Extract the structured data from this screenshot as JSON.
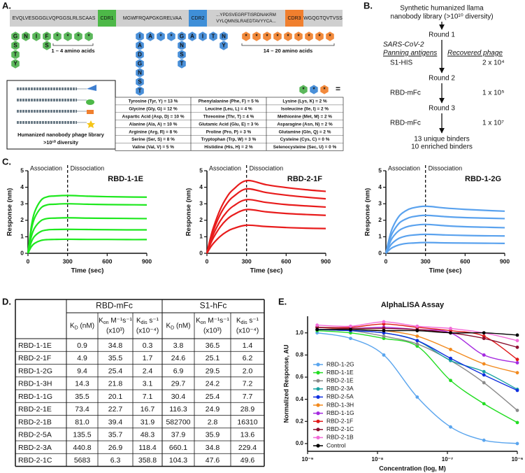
{
  "panel_a": {
    "label": "A.",
    "sequence": [
      {
        "lines": [
          "EVQLVESGGGLVQPGGSLRLSCAAS"
        ],
        "color": "#cfcfcf"
      },
      {
        "lines": [
          "CDR1"
        ],
        "color": "#4db848"
      },
      {
        "lines": [
          "MGWFRQAPGKGRELVAA"
        ],
        "color": "#cfcfcf"
      },
      {
        "lines": [
          "CDR2"
        ],
        "color": "#3f8fd8"
      },
      {
        "lines": [
          "...YPDSVEGRFTISRDNAKRM",
          "VYLQMNSLRAEDTAVYYCA..."
        ],
        "color": "#cfcfcf"
      },
      {
        "lines": [
          "CDR3"
        ],
        "color": "#f07f2e"
      },
      {
        "lines": [
          "WGQGTQVTVSS"
        ],
        "color": "#cfcfcf"
      }
    ],
    "chains": [
      {
        "color": "#5cb85c",
        "label": "1 – 4 amino acids",
        "columns": [
          [
            "G",
            "S",
            "T",
            "Y"
          ],
          [
            "N"
          ],
          [
            "I"
          ],
          [
            "F",
            "S"
          ],
          [
            "*"
          ],
          [
            "*"
          ],
          [
            "*"
          ],
          [
            "*"
          ]
        ]
      },
      {
        "color": "#4a90d9",
        "columns": [
          [
            "I",
            "A",
            "D",
            "G",
            "N",
            "S",
            "T"
          ],
          [
            "A"
          ],
          [
            "*"
          ],
          [
            "*"
          ],
          [
            "G",
            "N",
            "S",
            "T"
          ],
          [
            "A"
          ],
          [
            "I"
          ],
          [
            "T"
          ],
          [
            "N",
            "Y"
          ]
        ]
      },
      {
        "color": "#f28a3c",
        "label": "14 – 20 amino acids",
        "columns": [
          [
            "*"
          ],
          [
            "*"
          ],
          [
            "*"
          ],
          [
            "*"
          ],
          [
            "*"
          ],
          [
            "*"
          ],
          [
            "*"
          ],
          [
            "*"
          ],
          [
            "*"
          ]
        ]
      }
    ],
    "legend_hexes": [
      {
        "text": "*",
        "color": "#5cb85c"
      },
      {
        "text": "*",
        "color": "#4a90d9"
      },
      {
        "text": "*",
        "color": "#f28a3c"
      }
    ],
    "equals": "=",
    "library_title": "Humanized nanobody phage library",
    "library_subtitle": ">10¹⁰ diversity",
    "amino_acids": [
      [
        "Tyrosine (Tyr, Y) = 13 %",
        "Glycine (Gly, G) = 12 %",
        "Aspartic Acid (Asp, D) = 10 %",
        "Alanine (Ala, A) = 10 %",
        "Arginine (Arg, R) = 8 %",
        "Serine (Ser, S) = 8 %",
        "Valine (Val, V) = 5 %"
      ],
      [
        "Phenylalanine (Phe, F) = 5 %",
        "Leucine (Leu, L) = 4 %",
        "Threonine (Thr, T) = 4 %",
        "Glutamic Acid (Glu, E) = 3 %",
        "Proline (Pro, P) = 3 %",
        "Tryptophan (Trp, W) = 3 %",
        "Histidine (His, H) = 2 %"
      ],
      [
        "Lysine (Lys, K) = 2 %",
        "Isoleucine (Ile, I) = 2 %",
        "Methionine (Met, M) = 2 %",
        "Asparagine (Asn, N) = 2 %",
        "Glutamine (Gln, Q) = 2 %",
        "Cysteine (Cys, C) = 0 %",
        "Selenocysteine (Sec, U) = 0 %"
      ]
    ]
  },
  "panel_b": {
    "label": "B.",
    "title_lines": [
      "Synthetic humanized llama",
      "nanobody library (>10¹⁰ diversity)"
    ],
    "rounds": [
      "Round 1",
      "Round 2",
      "Round 3"
    ],
    "antigen_header": "SARS-CoV-2",
    "antigen_subheader": "Panning antigens",
    "phage_header": "Recovered phage",
    "antigens": [
      "S1-HIS",
      "RBD-mFc",
      "RBD-mFc"
    ],
    "phage": [
      "2 x 10⁴",
      "1 x 10⁵",
      "1 x 10⁷"
    ],
    "results": [
      "13 unique binders",
      "10 enriched binders"
    ]
  },
  "panel_c_label": "C.",
  "chart_data": [
    {
      "type": "line",
      "title": "RBD-1-1E",
      "x_label": "Time (sec)",
      "y_label": "Response (nm)",
      "annotations": [
        "Association",
        "Dissociation"
      ],
      "phase_boundary": 300,
      "xlim": [
        0,
        900
      ],
      "xticks": [
        0,
        300,
        600,
        900
      ],
      "ylim": [
        0,
        5
      ],
      "yticks": [
        0,
        1,
        2,
        3,
        4,
        5
      ],
      "x": [
        0,
        25,
        50,
        100,
        150,
        200,
        300,
        450,
        600,
        750,
        900
      ],
      "series": [
        {
          "color": "#1ee81e",
          "values": [
            0,
            1.61,
            2.49,
            3.22,
            3.43,
            3.47,
            3.5,
            3.46,
            3.43,
            3.41,
            3.4
          ]
        },
        {
          "color": "#1ee81e",
          "values": [
            0,
            1.38,
            2.13,
            2.76,
            2.94,
            2.97,
            3.0,
            2.97,
            2.95,
            2.94,
            2.93
          ]
        },
        {
          "color": "#1ee81e",
          "values": [
            0,
            0.99,
            1.53,
            1.98,
            2.11,
            2.13,
            2.15,
            2.13,
            2.12,
            2.11,
            2.1
          ]
        },
        {
          "color": "#1ee81e",
          "values": [
            0,
            0.67,
            1.03,
            1.33,
            1.42,
            1.44,
            1.45,
            1.44,
            1.43,
            1.42,
            1.42
          ]
        },
        {
          "color": "#1ee81e",
          "values": [
            0,
            0.39,
            0.6,
            0.78,
            0.83,
            0.84,
            0.85,
            0.84,
            0.84,
            0.83,
            0.83
          ]
        }
      ]
    },
    {
      "type": "line",
      "title": "RBD-2-1F",
      "x_label": "Time (sec)",
      "y_label": "Response (nm)",
      "annotations": [
        "Association",
        "Dissociation"
      ],
      "phase_boundary": 300,
      "xlim": [
        0,
        900
      ],
      "xticks": [
        0,
        300,
        600,
        900
      ],
      "ylim": [
        0,
        5
      ],
      "yticks": [
        0,
        1,
        2,
        3,
        4,
        5
      ],
      "x": [
        0,
        25,
        50,
        100,
        150,
        200,
        300,
        450,
        600,
        750,
        900
      ],
      "series": [
        {
          "color": "#e81c1c",
          "values": [
            0,
            0.88,
            1.58,
            2.64,
            3.39,
            3.87,
            4.4,
            4.15,
            3.98,
            3.85,
            3.75
          ]
        },
        {
          "color": "#e81c1c",
          "values": [
            0,
            0.78,
            1.4,
            2.34,
            3.0,
            3.43,
            3.9,
            3.68,
            3.52,
            3.4,
            3.3
          ]
        },
        {
          "color": "#e81c1c",
          "values": [
            0,
            0.65,
            1.17,
            1.95,
            2.5,
            2.86,
            3.25,
            3.08,
            2.95,
            2.87,
            2.8
          ]
        },
        {
          "color": "#e81c1c",
          "values": [
            0,
            0.53,
            0.95,
            1.59,
            2.04,
            2.33,
            2.65,
            2.51,
            2.41,
            2.35,
            2.3
          ]
        },
        {
          "color": "#e81c1c",
          "values": [
            0,
            0.34,
            0.61,
            1.02,
            1.31,
            1.5,
            1.7,
            1.62,
            1.56,
            1.52,
            1.5
          ]
        }
      ]
    },
    {
      "type": "line",
      "title": "RBD-1-2G",
      "x_label": "Time (sec)",
      "y_label": "Response (nm)",
      "annotations": [
        "Association",
        "Dissociation"
      ],
      "phase_boundary": 300,
      "xlim": [
        0,
        900
      ],
      "xticks": [
        0,
        300,
        600,
        900
      ],
      "ylim": [
        0,
        5
      ],
      "yticks": [
        0,
        1,
        2,
        3,
        4,
        5
      ],
      "x": [
        0,
        25,
        50,
        100,
        150,
        200,
        300,
        450,
        600,
        750,
        900
      ],
      "series": [
        {
          "color": "#5aa2ee",
          "values": [
            0,
            0.88,
            1.54,
            2.25,
            2.57,
            2.74,
            2.85,
            2.74,
            2.66,
            2.6,
            2.55
          ]
        },
        {
          "color": "#5aa2ee",
          "values": [
            0,
            0.71,
            1.24,
            1.82,
            2.07,
            2.21,
            2.3,
            2.22,
            2.16,
            2.13,
            2.1
          ]
        },
        {
          "color": "#5aa2ee",
          "values": [
            0,
            0.54,
            0.95,
            1.38,
            1.58,
            1.68,
            1.75,
            1.67,
            1.61,
            1.58,
            1.55
          ]
        },
        {
          "color": "#5aa2ee",
          "values": [
            0,
            0.36,
            0.62,
            0.91,
            1.04,
            1.1,
            1.15,
            1.11,
            1.08,
            1.06,
            1.05
          ]
        },
        {
          "color": "#5aa2ee",
          "values": [
            0,
            0.2,
            0.35,
            0.51,
            0.59,
            0.62,
            0.65,
            0.63,
            0.62,
            0.61,
            0.6
          ]
        }
      ]
    },
    {
      "type": "line",
      "title": "AlphaLISA Assay",
      "x_label": "Concentration (log, M)",
      "y_label": "Normalized Response, AU",
      "xscale": "log",
      "markers": true,
      "legend": "bottom-left",
      "xlim": [
        1e-09,
        1e-06
      ],
      "xticks": [
        {
          "value": 1e-09,
          "label": "10⁻⁹"
        },
        {
          "value": 1e-08,
          "label": "10⁻⁸"
        },
        {
          "value": 1e-07,
          "label": "10⁻⁷"
        },
        {
          "value": 1e-06,
          "label": "10⁻⁶"
        }
      ],
      "ylim": [
        -0.07,
        1.15
      ],
      "yticks": [
        {
          "value": 0,
          "label": "0.0"
        },
        0.2,
        0.4,
        0.6,
        0.8,
        {
          "value": 1,
          "label": "1.0"
        }
      ],
      "x": [
        1.37e-09,
        4.12e-09,
        1.23e-08,
        3.7e-08,
        1.11e-07,
        3.33e-07,
        1e-06
      ],
      "series": [
        {
          "name": "RBD-1-2G",
          "color": "#5aa5ee",
          "values": [
            1.0,
            0.95,
            0.8,
            0.42,
            0.15,
            0.03,
            0.0
          ]
        },
        {
          "name": "RBD-1-1E",
          "color": "#22dd22",
          "values": [
            1.02,
            1.0,
            0.95,
            0.88,
            0.57,
            0.36,
            0.19
          ]
        },
        {
          "name": "RBD-2-1E",
          "color": "#8a8a8a",
          "values": [
            1.03,
            1.02,
            0.97,
            0.9,
            0.75,
            0.55,
            0.3
          ]
        },
        {
          "name": "RBD-2-3A",
          "color": "#1aa3a3",
          "values": [
            1.03,
            1.02,
            1.0,
            0.93,
            0.75,
            0.65,
            0.49
          ]
        },
        {
          "name": "RBD-2-5A",
          "color": "#1030e0",
          "values": [
            1.03,
            1.02,
            1.0,
            0.93,
            0.77,
            0.62,
            0.48
          ]
        },
        {
          "name": "RBD-1-3H",
          "color": "#f28a1e",
          "values": [
            1.05,
            1.03,
            1.02,
            0.97,
            0.85,
            0.72,
            0.64
          ]
        },
        {
          "name": "RBD-1-1G",
          "color": "#a52ae0",
          "values": [
            1.05,
            1.04,
            1.05,
            1.03,
            1.0,
            0.8,
            0.73
          ]
        },
        {
          "name": "RBD-2-1F",
          "color": "#e01818",
          "values": [
            1.05,
            1.05,
            1.08,
            1.05,
            1.02,
            0.97,
            0.76
          ]
        },
        {
          "name": "RBD-2-1C",
          "color": "#8a0f2e",
          "values": [
            1.05,
            1.04,
            1.04,
            1.03,
            1.0,
            0.95,
            0.87
          ]
        },
        {
          "name": "RBD-2-1B",
          "color": "#f26ad8",
          "values": [
            1.07,
            1.06,
            1.1,
            1.06,
            1.04,
            1.0,
            0.93
          ]
        },
        {
          "name": "Control",
          "color": "#000000",
          "values": [
            1.03,
            1.03,
            1.02,
            1.02,
            1.0,
            1.0,
            0.98
          ]
        }
      ]
    }
  ],
  "panel_d": {
    "label": "D.",
    "groups": [
      "RBD-mFc",
      "S1-hFc"
    ],
    "columns": [
      {
        "sym": "K",
        "sub": "D",
        "unit": " (nM)"
      },
      {
        "sym": "K",
        "sub": "on",
        "unit": " M⁻¹s⁻¹",
        "scale": "(x10³)"
      },
      {
        "sym": "K",
        "sub": "dis",
        "unit": " s⁻¹",
        "scale": "(x10⁻⁴)"
      },
      {
        "sym": "K",
        "sub": "D",
        "unit": " (nM)"
      },
      {
        "sym": "K",
        "sub": "on",
        "unit": " M⁻¹s⁻¹",
        "scale": "(x10³)"
      },
      {
        "sym": "K",
        "sub": "dis",
        "unit": " s⁻¹",
        "scale": "(x10⁻⁴)"
      }
    ],
    "rows": [
      [
        "RBD-1-1E",
        "0.9",
        "34.8",
        "0.3",
        "3.8",
        "36.5",
        "1.4"
      ],
      [
        "RBD-2-1F",
        "4.9",
        "35.5",
        "1.7",
        "24.6",
        "25.1",
        "6.2"
      ],
      [
        "RBD-1-2G",
        "9.4",
        "25.4",
        "2.4",
        "6.9",
        "29.5",
        "2.0"
      ],
      [
        "RBD-1-3H",
        "14.3",
        "21.8",
        "3.1",
        "29.7",
        "24.2",
        "7.2"
      ],
      [
        "RBD-1-1G",
        "35.5",
        "20.1",
        "7.1",
        "30.4",
        "25.4",
        "7.7"
      ],
      [
        "RBD-2-1E",
        "73.4",
        "22.7",
        "16.7",
        "116.3",
        "24.9",
        "28.9"
      ],
      [
        "RBD-2-1B",
        "81.0",
        "39.4",
        "31.9",
        "582700",
        "2.8",
        "16310"
      ],
      [
        "RBD-2-5A",
        "135.5",
        "35.7",
        "48.3",
        "37.9",
        "35.9",
        "13.6"
      ],
      [
        "RBD-2-3A",
        "440.8",
        "26.9",
        "118.4",
        "660.1",
        "34.8",
        "229.4"
      ],
      [
        "RBD-2-1C",
        "5683",
        "6.3",
        "358.8",
        "104.3",
        "47.6",
        "49.6"
      ]
    ]
  },
  "panel_e_label": "E."
}
